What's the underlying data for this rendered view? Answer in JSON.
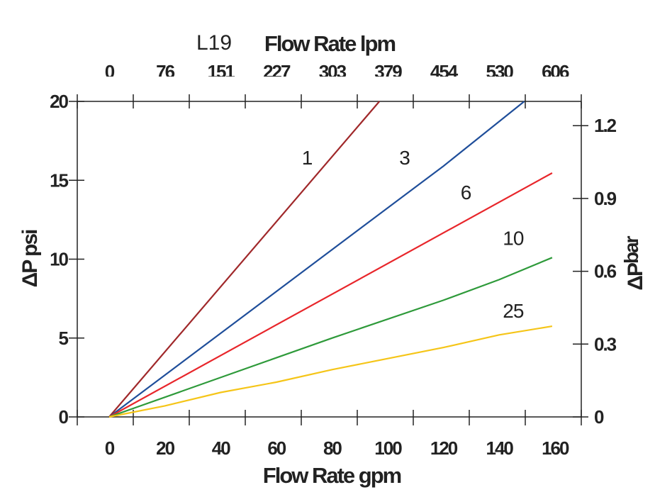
{
  "chart_data": {
    "type": "line",
    "title_prefix": "L19",
    "title": "Flow Rate lpm",
    "xlabel": "Flow Rate gpm",
    "ylabel": "ΔP psi",
    "ylabel_right": {
      "main": "ΔP",
      "sub": "bar"
    },
    "xlim": [
      -11.5,
      169
    ],
    "ylim": [
      0,
      20
    ],
    "ylim_right": [
      0,
      1.3
    ],
    "grid": false,
    "x_ticks": [
      "0",
      "20",
      "40",
      "60",
      "80",
      "100",
      "120",
      "140",
      "160"
    ],
    "x_tick_values": [
      0,
      20,
      40,
      60,
      80,
      100,
      120,
      140,
      160
    ],
    "top_ticks": [
      "0",
      "76",
      "151",
      "227",
      "303",
      "379",
      "454",
      "530",
      "606"
    ],
    "y_ticks": [
      "0",
      "5",
      "10",
      "15",
      "20"
    ],
    "y_tick_values": [
      0,
      5,
      10,
      15,
      20
    ],
    "y_right_ticks": [
      "0",
      "0.3",
      "0.6",
      "0.9",
      "1.2"
    ],
    "y_right_tick_values": [
      0,
      0.3,
      0.6,
      0.9,
      1.2
    ],
    "series": [
      {
        "name": "1",
        "color": "#a0282a",
        "points": [
          [
            0,
            0
          ],
          [
            97,
            20
          ]
        ],
        "label_at": [
          71,
          16
        ]
      },
      {
        "name": "3",
        "color": "#1f4e9a",
        "points": [
          [
            0,
            0
          ],
          [
            120,
            15.9
          ],
          [
            149,
            20
          ]
        ],
        "label_at": [
          106,
          16
        ]
      },
      {
        "name": "6",
        "color": "#e8262b",
        "points": [
          [
            0,
            0
          ],
          [
            159,
            15.46
          ]
        ],
        "label_at": [
          128,
          13.8
        ]
      },
      {
        "name": "10",
        "color": "#2e9a3a",
        "points": [
          [
            0,
            0
          ],
          [
            40,
            2.5
          ],
          [
            80,
            5.0
          ],
          [
            120,
            7.4
          ],
          [
            140,
            8.7
          ],
          [
            159,
            10.1
          ]
        ],
        "label_at": [
          145,
          10.9
        ]
      },
      {
        "name": "25",
        "color": "#f5c518",
        "points": [
          [
            0,
            0
          ],
          [
            20,
            0.7
          ],
          [
            40,
            1.55
          ],
          [
            60,
            2.2
          ],
          [
            80,
            3.0
          ],
          [
            100,
            3.7
          ],
          [
            120,
            4.4
          ],
          [
            140,
            5.2
          ],
          [
            159,
            5.75
          ]
        ],
        "label_at": [
          145,
          6.3
        ]
      }
    ]
  }
}
